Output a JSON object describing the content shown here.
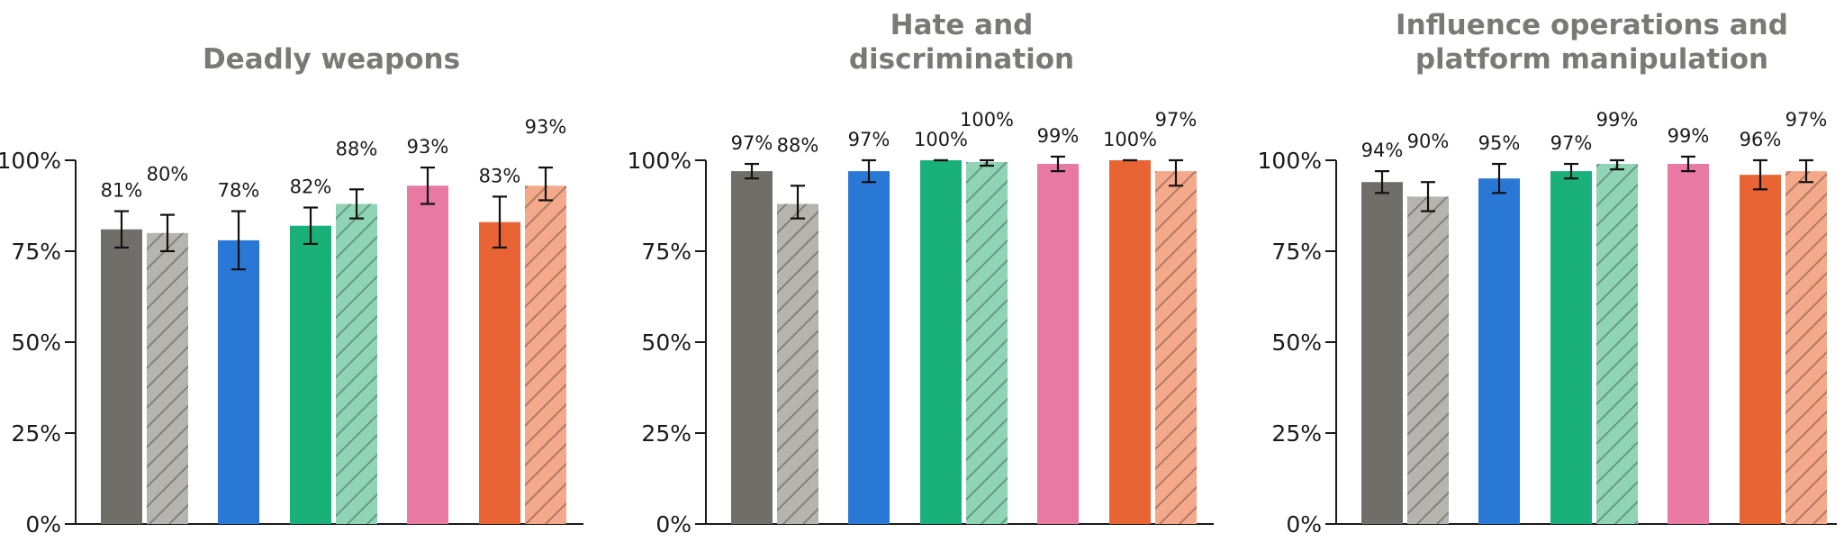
{
  "chart_data": [
    {
      "type": "bar",
      "title": "Deadly weapons",
      "ylim": [
        0,
        100
      ],
      "yticks": [
        "0%",
        "25%",
        "50%",
        "75%",
        "100%"
      ],
      "grid": false,
      "bars": [
        {
          "group": 1,
          "variant": "solid",
          "color": "#6f6e69",
          "value": 81,
          "label": "81%",
          "err": [
            76,
            86
          ]
        },
        {
          "group": 1,
          "variant": "hatched",
          "color": "#b5b4ae",
          "value": 80,
          "label": "80%",
          "err": [
            75,
            85
          ]
        },
        {
          "group": 2,
          "variant": "solid",
          "color": "#2a78d6",
          "value": 78,
          "label": "78%",
          "err": [
            70,
            86
          ]
        },
        {
          "group": 3,
          "variant": "solid",
          "color": "#1ab079",
          "value": 82,
          "label": "82%",
          "err": [
            77,
            87
          ]
        },
        {
          "group": 3,
          "variant": "hatched",
          "color": "#8fd5b5",
          "value": 88,
          "label": "88%",
          "err": [
            84,
            92
          ]
        },
        {
          "group": 4,
          "variant": "solid",
          "color": "#e879a3",
          "value": 93,
          "label": "93%",
          "err": [
            88,
            98
          ]
        },
        {
          "group": 5,
          "variant": "solid",
          "color": "#e86435",
          "value": 83,
          "label": "83%",
          "err": [
            76,
            90
          ]
        },
        {
          "group": 5,
          "variant": "hatched",
          "color": "#f4a98a",
          "value": 93,
          "label": "93%",
          "err": [
            89,
            98
          ]
        }
      ]
    },
    {
      "type": "bar",
      "title": "Hate and\ndiscrimination",
      "ylim": [
        0,
        100
      ],
      "yticks": [
        "0%",
        "25%",
        "50%",
        "75%",
        "100%"
      ],
      "grid": false,
      "bars": [
        {
          "group": 1,
          "variant": "solid",
          "color": "#6f6e69",
          "value": 97,
          "label": "97%",
          "err": [
            95,
            99
          ]
        },
        {
          "group": 1,
          "variant": "hatched",
          "color": "#b5b4ae",
          "value": 88,
          "label": "88%",
          "err": [
            84,
            93
          ]
        },
        {
          "group": 2,
          "variant": "solid",
          "color": "#2a78d6",
          "value": 97,
          "label": "97%",
          "err": [
            94,
            100
          ]
        },
        {
          "group": 3,
          "variant": "solid",
          "color": "#1ab079",
          "value": 100,
          "label": "100%",
          "err": [
            100,
            100
          ]
        },
        {
          "group": 3,
          "variant": "hatched",
          "color": "#8fd5b5",
          "value": 99.5,
          "label": "100%",
          "err": [
            98.5,
            100
          ]
        },
        {
          "group": 4,
          "variant": "solid",
          "color": "#e879a3",
          "value": 99,
          "label": "99%",
          "err": [
            97,
            101
          ]
        },
        {
          "group": 5,
          "variant": "solid",
          "color": "#e86435",
          "value": 100,
          "label": "100%",
          "err": [
            100,
            100
          ]
        },
        {
          "group": 5,
          "variant": "hatched",
          "color": "#f4a98a",
          "value": 97,
          "label": "97%",
          "err": [
            93,
            100
          ]
        }
      ]
    },
    {
      "type": "bar",
      "title": "Influence operations and\nplatform manipulation",
      "ylim": [
        0,
        100
      ],
      "yticks": [
        "0%",
        "25%",
        "50%",
        "75%",
        "100%"
      ],
      "grid": false,
      "bars": [
        {
          "group": 1,
          "variant": "solid",
          "color": "#6f6e69",
          "value": 94,
          "label": "94%",
          "err": [
            91,
            97
          ]
        },
        {
          "group": 1,
          "variant": "hatched",
          "color": "#b5b4ae",
          "value": 90,
          "label": "90%",
          "err": [
            86,
            94
          ]
        },
        {
          "group": 2,
          "variant": "solid",
          "color": "#2a78d6",
          "value": 95,
          "label": "95%",
          "err": [
            91,
            99
          ]
        },
        {
          "group": 3,
          "variant": "solid",
          "color": "#1ab079",
          "value": 97,
          "label": "97%",
          "err": [
            95,
            99
          ]
        },
        {
          "group": 3,
          "variant": "hatched",
          "color": "#8fd5b5",
          "value": 99,
          "label": "99%",
          "err": [
            97.5,
            100
          ]
        },
        {
          "group": 4,
          "variant": "solid",
          "color": "#e879a3",
          "value": 99,
          "label": "99%",
          "err": [
            97,
            101
          ]
        },
        {
          "group": 5,
          "variant": "solid",
          "color": "#e86435",
          "value": 96,
          "label": "96%",
          "err": [
            92,
            100
          ]
        },
        {
          "group": 5,
          "variant": "hatched",
          "color": "#f4a98a",
          "value": 97,
          "label": "97%",
          "err": [
            94,
            100
          ]
        }
      ]
    }
  ]
}
